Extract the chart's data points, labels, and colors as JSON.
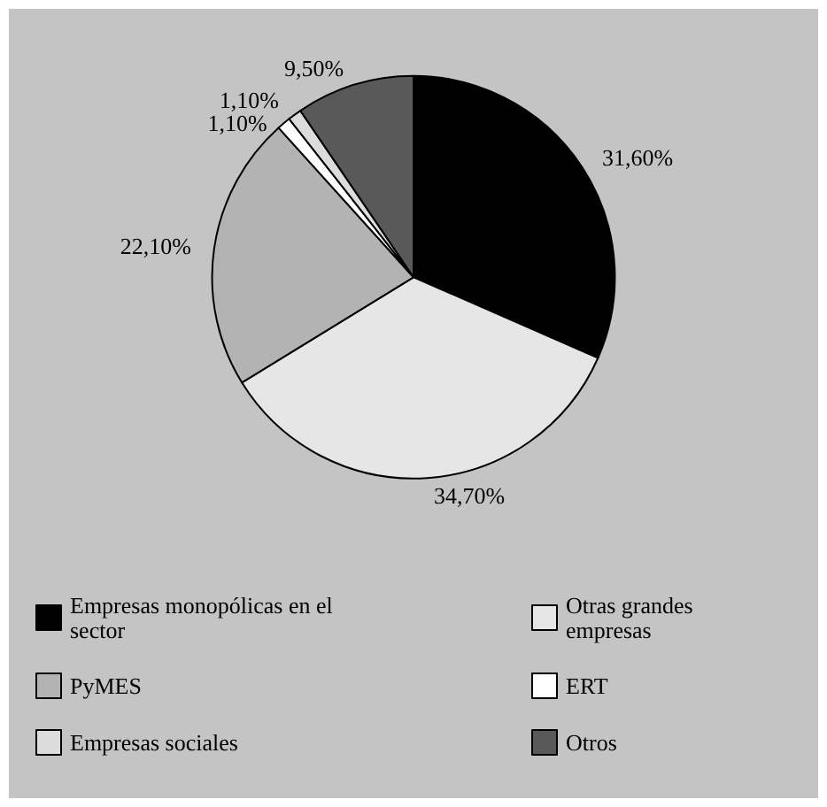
{
  "chart_data": {
    "type": "pie",
    "categories": [
      "Empresas monopólicas en el sector",
      "Otras grandes empresas",
      "PyMES",
      "ERT",
      "Empresas sociales",
      "Otros"
    ],
    "values": [
      31.6,
      34.7,
      22.1,
      1.1,
      1.1,
      9.5
    ],
    "colors": [
      "#000000",
      "#e6e6e6",
      "#b3b3b3",
      "#ffffff",
      "#dcdcdc",
      "#595959"
    ],
    "value_labels": [
      "31,60%",
      "34,70%",
      "22,10%",
      "1,10%",
      "1,10%",
      "9,50%"
    ],
    "legend": "bottom"
  }
}
